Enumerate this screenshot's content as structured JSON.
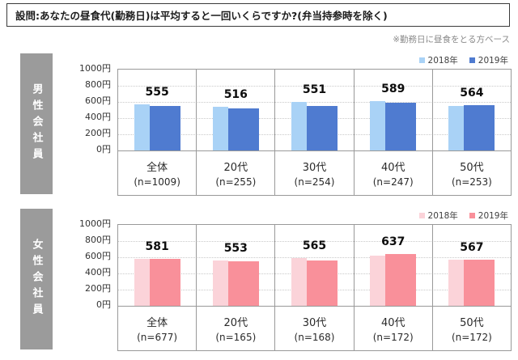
{
  "page": {
    "title": "設問:あなたの昼食代(勤務日)は平均すると一回いくらですか?(弁当持参時を除く)",
    "note": "※勤務日に昼食をとる方ベース"
  },
  "chart_data": [
    {
      "type": "bar",
      "section_label": "男性会社員",
      "categories": [
        "全体",
        "20代",
        "30代",
        "40代",
        "50代"
      ],
      "sample_labels": [
        "(n=1009)",
        "(n=255)",
        "(n=254)",
        "(n=247)",
        "(n=253)"
      ],
      "y_ticks": [
        "1000円",
        "800円",
        "600円",
        "400円",
        "200円",
        "0円"
      ],
      "ylim": [
        0,
        1000
      ],
      "grid": "dotted-horizontal",
      "legend_position": "top-right",
      "sidebar_color": "#9B9B9B",
      "series": [
        {
          "name": "2018年",
          "color": "#A9D2F6",
          "labeled": false,
          "values_estimated_from_bars": true,
          "values": [
            570,
            540,
            600,
            610,
            548
          ]
        },
        {
          "name": "2019年",
          "color": "#4F7BD0",
          "labeled": true,
          "values": [
            555,
            516,
            551,
            589,
            564
          ]
        }
      ]
    },
    {
      "type": "bar",
      "section_label": "女性会社員",
      "categories": [
        "全体",
        "20代",
        "30代",
        "40代",
        "50代"
      ],
      "sample_labels": [
        "(n=677)",
        "(n=165)",
        "(n=168)",
        "(n=172)",
        "(n=172)"
      ],
      "y_ticks": [
        "1000円",
        "800円",
        "600円",
        "400円",
        "200円",
        "0円"
      ],
      "ylim": [
        0,
        1000
      ],
      "grid": "dotted-horizontal",
      "legend_position": "top-right",
      "sidebar_color": "#9B9B9B",
      "series": [
        {
          "name": "2018年",
          "color": "#FBD3D9",
          "labeled": false,
          "values_estimated_from_bars": true,
          "values": [
            585,
            565,
            590,
            620,
            575
          ]
        },
        {
          "name": "2019年",
          "color": "#F9909A",
          "labeled": true,
          "values": [
            581,
            553,
            565,
            637,
            567
          ]
        }
      ]
    }
  ]
}
